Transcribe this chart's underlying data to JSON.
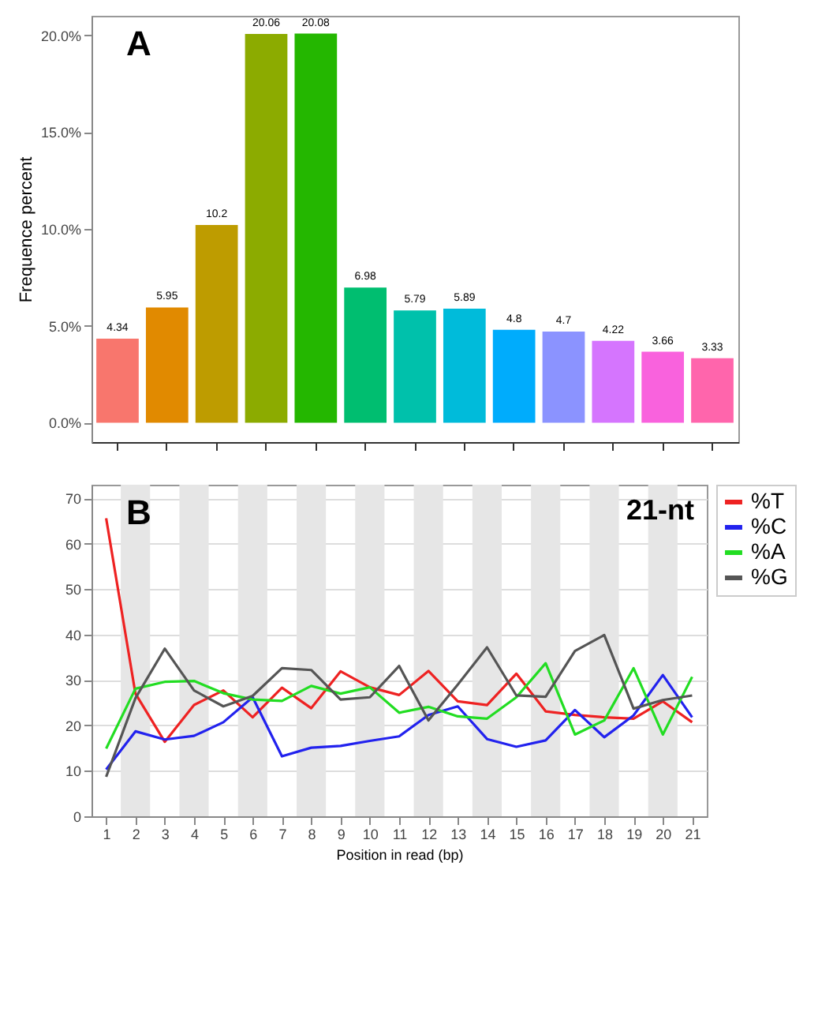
{
  "chart_data": [
    {
      "type": "bar",
      "annotations": [
        "A"
      ],
      "ylabel": "Frequence percent",
      "categories": [
        null,
        null,
        null,
        null,
        null,
        null,
        null,
        null,
        null,
        null,
        null,
        null,
        null
      ],
      "values": [
        4.34,
        5.95,
        10.2,
        20.06,
        20.08,
        6.98,
        5.79,
        5.89,
        4.8,
        4.7,
        4.22,
        3.66,
        3.33
      ],
      "colors": [
        "#f8766d",
        "#e18a00",
        "#be9c00",
        "#8cab00",
        "#24b700",
        "#00be70",
        "#00c1ab",
        "#00bbda",
        "#00acfc",
        "#8b93ff",
        "#d575fe",
        "#f962dd",
        "#ff65ac"
      ],
      "data_labels": true,
      "ylim": [
        -1,
        21
      ],
      "yticks": [
        {
          "value": 0,
          "label": "0.0%"
        },
        {
          "value": 5,
          "label": "5.0%"
        },
        {
          "value": 10,
          "label": "10.0%"
        },
        {
          "value": 15,
          "label": "15.0%"
        },
        {
          "value": 20,
          "label": "20.0%"
        }
      ],
      "tick_labels": "y",
      "grid": false
    },
    {
      "type": "line",
      "annotations": [
        "B",
        "21-nt"
      ],
      "xlabel": "Position in read (bp)",
      "x": [
        1,
        2,
        3,
        4,
        5,
        6,
        7,
        8,
        9,
        10,
        11,
        12,
        13,
        14,
        15,
        16,
        17,
        18,
        19,
        20,
        21
      ],
      "series": [
        {
          "name": "%T",
          "color": "#ee2222",
          "values": [
            65.6,
            27,
            16.4,
            24.5,
            27.7,
            21.8,
            28.3,
            23.8,
            31.9,
            28.4,
            26.7,
            32,
            25.3,
            24.5,
            31.4,
            23.1,
            22.3,
            21.8,
            21.5,
            25.3,
            20.7
          ]
        },
        {
          "name": "%C",
          "color": "#2222ee",
          "values": [
            10.3,
            18.7,
            16.9,
            17.7,
            20.7,
            26.2,
            13.2,
            15.1,
            15.5,
            16.6,
            17.6,
            22.3,
            24.2,
            17,
            15.3,
            16.7,
            23.4,
            17.4,
            22.2,
            31.1,
            21.8
          ]
        },
        {
          "name": "%A",
          "color": "#22dd22",
          "values": [
            14.9,
            28.1,
            29.6,
            29.8,
            27.1,
            25.7,
            25.4,
            28.7,
            27,
            28.4,
            22.8,
            24.1,
            22,
            21.5,
            26.2,
            33.7,
            18,
            21.1,
            32.6,
            18,
            30.7
          ]
        },
        {
          "name": "%G",
          "color": "#555555",
          "values": [
            8.7,
            26,
            36.9,
            27.7,
            24.2,
            26.5,
            32.6,
            32.2,
            25.7,
            26.2,
            33.1,
            21.1,
            29,
            37.2,
            26.6,
            26.3,
            36.4,
            39.9,
            23.7,
            25.6,
            26.6
          ]
        }
      ],
      "bands": [
        {
          "axis": "x",
          "from": 1.5,
          "to": 2.5,
          "color": "#e6e6e6"
        },
        {
          "axis": "x",
          "from": 3.5,
          "to": 4.5,
          "color": "#e6e6e6"
        },
        {
          "axis": "x",
          "from": 5.5,
          "to": 6.5,
          "color": "#e6e6e6"
        },
        {
          "axis": "x",
          "from": 7.5,
          "to": 8.5,
          "color": "#e6e6e6"
        },
        {
          "axis": "x",
          "from": 9.5,
          "to": 10.5,
          "color": "#e6e6e6"
        },
        {
          "axis": "x",
          "from": 11.5,
          "to": 12.5,
          "color": "#e6e6e6"
        },
        {
          "axis": "x",
          "from": 13.5,
          "to": 14.5,
          "color": "#e6e6e6"
        },
        {
          "axis": "x",
          "from": 15.5,
          "to": 16.5,
          "color": "#e6e6e6"
        },
        {
          "axis": "x",
          "from": 17.5,
          "to": 18.5,
          "color": "#e6e6e6"
        },
        {
          "axis": "x",
          "from": 19.5,
          "to": 20.5,
          "color": "#e6e6e6"
        }
      ],
      "xlim": [
        0.5,
        21.5
      ],
      "xticks": [
        1,
        2,
        3,
        4,
        5,
        6,
        7,
        8,
        9,
        10,
        11,
        12,
        13,
        14,
        15,
        16,
        17,
        18,
        19,
        20,
        21
      ],
      "ylim": [
        0,
        73
      ],
      "yticks": [
        0,
        10,
        20,
        30,
        40,
        50,
        60,
        70
      ],
      "grid": "y",
      "legend": "top right",
      "marker": "none",
      "line_style": "solid"
    }
  ]
}
